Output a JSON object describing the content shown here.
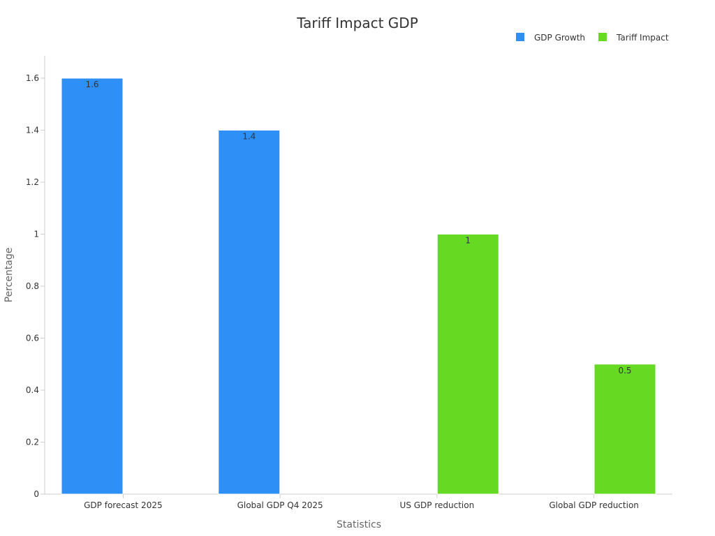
{
  "chart_data": {
    "type": "bar",
    "title": "Tariff Impact GDP",
    "xlabel": "Statistics",
    "ylabel": "Percentage",
    "ylim": [
      0,
      1.68
    ],
    "yticks": [
      0,
      0.2,
      0.4,
      0.6,
      0.8,
      1,
      1.2,
      1.4,
      1.6
    ],
    "ytick_labels": [
      "0",
      "0.2",
      "0.4",
      "0.6",
      "0.8",
      "1",
      "1.2",
      "1.4",
      "1.6"
    ],
    "grid": false,
    "legend_position": "top-right",
    "categories": [
      "GDP forecast 2025",
      "Global GDP Q4 2025",
      "US GDP reduction",
      "Global GDP reduction"
    ],
    "series": [
      {
        "name": "GDP Growth",
        "color": "#2e90f7",
        "values": [
          1.6,
          1.4,
          null,
          null
        ],
        "labels": [
          "1.6",
          "1.4",
          "",
          ""
        ]
      },
      {
        "name": "Tariff Impact",
        "color": "#66d923",
        "values": [
          null,
          null,
          1,
          0.5
        ],
        "labels": [
          "",
          "",
          "1",
          "0.5"
        ]
      }
    ]
  }
}
